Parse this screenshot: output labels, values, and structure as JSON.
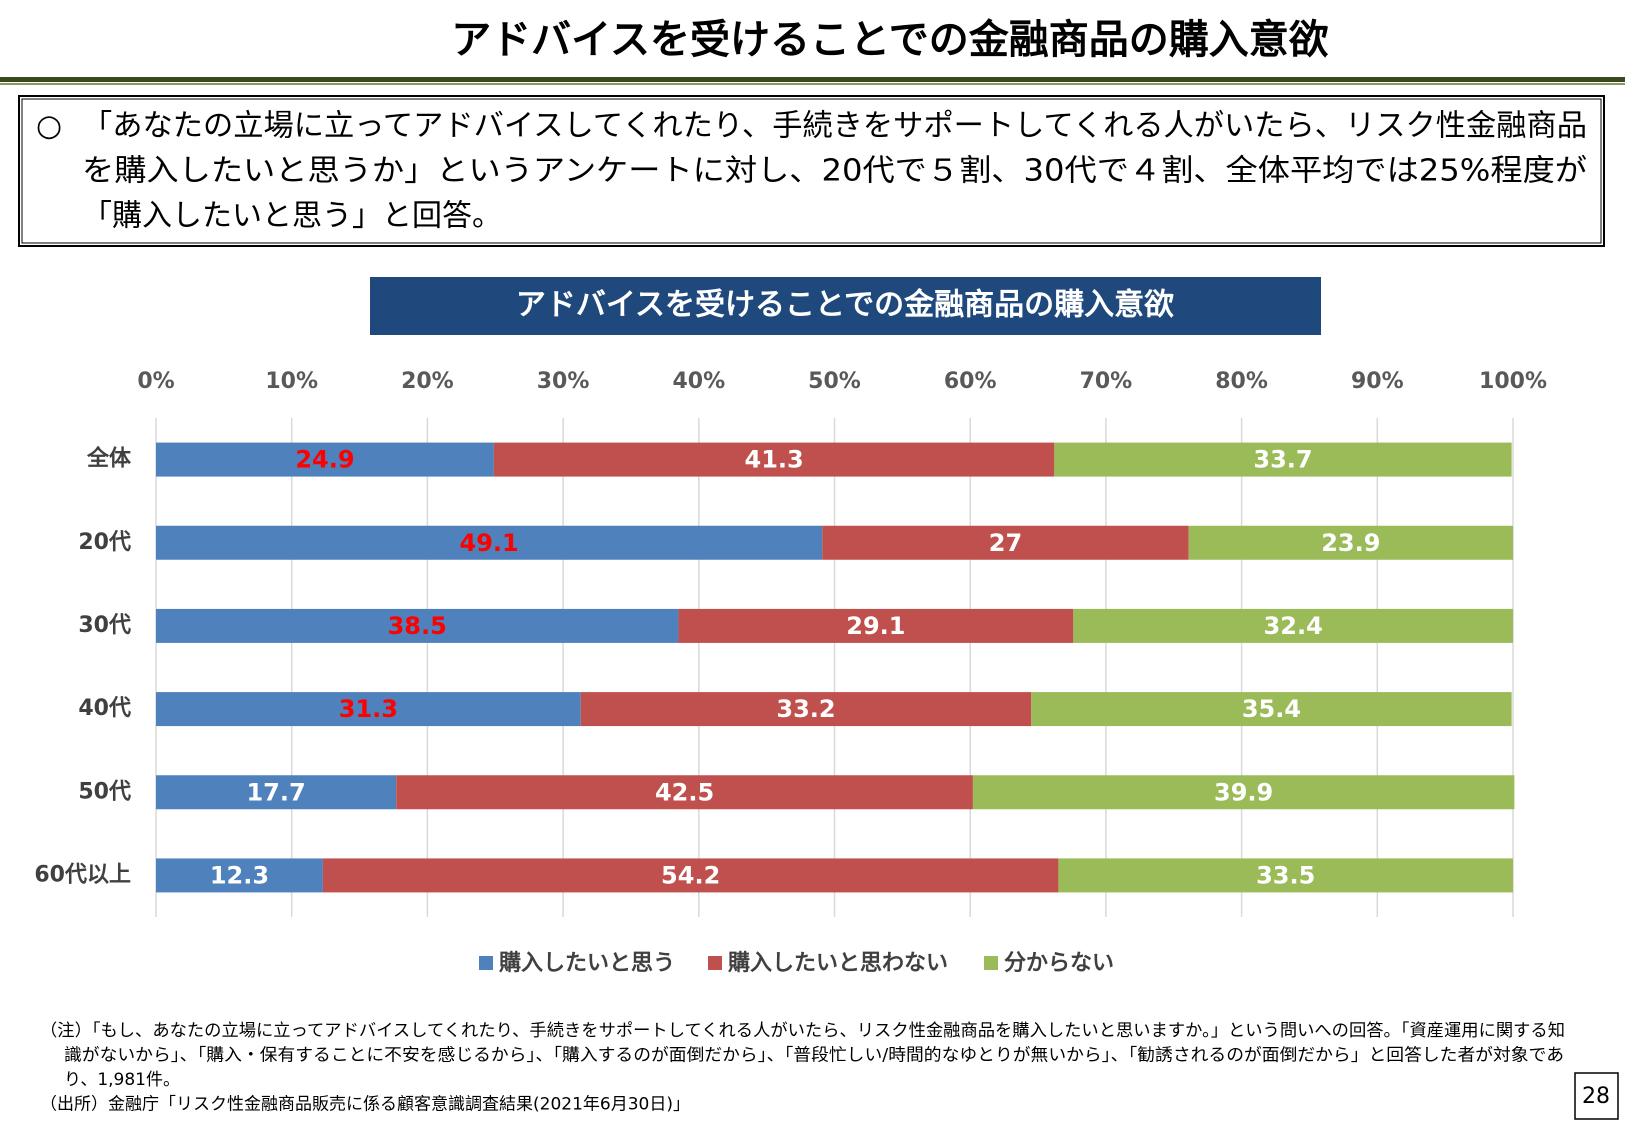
{
  "header": {
    "title": "アドバイスを受けることでの金融商品の購入意欲"
  },
  "summary": {
    "bullet": "○",
    "lines": [
      "「あなたの立場に立ってアドバイスしてくれたり、手続きをサポートしてくれる人がいたら、リスク性金融商品",
      "を購入したいと思うか」というアンケートに対し、20代で５割、30代で４割、全体平均では25%程度が",
      "「購入したいと思う」と回答。"
    ]
  },
  "chart_data": {
    "type": "stacked-bar",
    "orientation": "horizontal",
    "title": "アドバイスを受けることでの金融商品の購入意欲",
    "categories": [
      "全体",
      "20代",
      "30代",
      "40代",
      "50代",
      "60代以上"
    ],
    "series": [
      {
        "name": "購入したいと思う",
        "color": "#4f81bd",
        "values": [
          24.9,
          49.1,
          38.5,
          31.3,
          17.7,
          12.3
        ],
        "label_colors": [
          "#ff0000",
          "#ff0000",
          "#ff0000",
          "#ff0000",
          "#ffffff",
          "#ffffff"
        ]
      },
      {
        "name": "購入したいと思わない",
        "color": "#c0504d",
        "values": [
          41.3,
          27,
          29.1,
          33.2,
          42.5,
          54.2
        ]
      },
      {
        "name": "分からない",
        "color": "#9bbb59",
        "values": [
          33.7,
          23.9,
          32.4,
          35.4,
          39.9,
          33.5
        ]
      }
    ],
    "xlim": [
      0,
      100
    ],
    "xticks": [
      {
        "value": 0,
        "label": "0%"
      },
      {
        "value": 10,
        "label": "10%"
      },
      {
        "value": 20,
        "label": "20%"
      },
      {
        "value": 30,
        "label": "30%"
      },
      {
        "value": 40,
        "label": "40%"
      },
      {
        "value": 50,
        "label": "50%"
      },
      {
        "value": 60,
        "label": "60%"
      },
      {
        "value": 70,
        "label": "70%"
      },
      {
        "value": 80,
        "label": "80%"
      },
      {
        "value": 90,
        "label": "90%"
      },
      {
        "value": 100,
        "label": "100%"
      }
    ],
    "grid": true,
    "legend": "bottom"
  },
  "notes": [
    "（注）「もし、あなたの立場に立ってアドバイスしてくれたり、手続きをサポートしてくれる人がいたら、リスク性金融商品を購入したいと思いますか。」という問いへの回答。「資産運用に関する知",
    "識がないから」、「購入・保有することに不安を感じるから」、「購入するのが面倒だから」、「普段忙しい/時間的なゆとりが無いから」、「勧誘されるのが面倒だから」と回答した者が対象であ",
    "り、1,981件。",
    "（出所）金融庁「リスク性金融商品販売に係る顧客意識調査結果(2021年6月30日)」"
  ],
  "page_number": "28"
}
